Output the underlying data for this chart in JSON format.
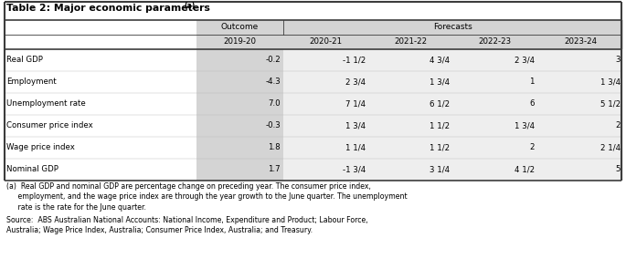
{
  "title": "Table 2: Major economic parameters",
  "title_super": "(a)",
  "col_headers_row1": [
    "",
    "Outcome",
    "Forecasts",
    "",
    "",
    ""
  ],
  "col_headers_row2": [
    "",
    "2019-20",
    "2020-21",
    "2021-22",
    "2022-23",
    "2023-24"
  ],
  "rows": [
    [
      "Real GDP",
      "-0.2",
      "-1 1/2",
      "4 3/4",
      "2 3/4",
      "3"
    ],
    [
      "Employment",
      "-4.3",
      "2 3/4",
      "1 3/4",
      "1",
      "1 3/4"
    ],
    [
      "Unemployment rate",
      "7.0",
      "7 1/4",
      "6 1/2",
      "6",
      "5 1/2"
    ],
    [
      "Consumer price index",
      "-0.3",
      "1 3/4",
      "1 1/2",
      "1 3/4",
      "2"
    ],
    [
      "Wage price index",
      "1.8",
      "1 1/4",
      "1 1/2",
      "2",
      "2 1/4"
    ],
    [
      "Nominal GDP",
      "1.7",
      "-1 3/4",
      "3 1/4",
      "4 1/2",
      "5"
    ]
  ],
  "footnote_lines": [
    "(a)  Real GDP and nominal GDP are percentage change on preceding year. The consumer price index,",
    "     employment, and the wage price index are through the year growth to the June quarter. The unemployment",
    "     rate is the rate for the June quarter."
  ],
  "source_lines": [
    "Source:  ABS Australian National Accounts: National Income, Expenditure and Product; Labour Force,",
    "Australia; Wage Price Index, Australia; Consumer Price Index, Australia; and Treasury."
  ],
  "gray_bg": "#d4d4d4",
  "white_bg": "#ffffff",
  "border_dark": "#3c3c3c",
  "text_color": "#000000"
}
